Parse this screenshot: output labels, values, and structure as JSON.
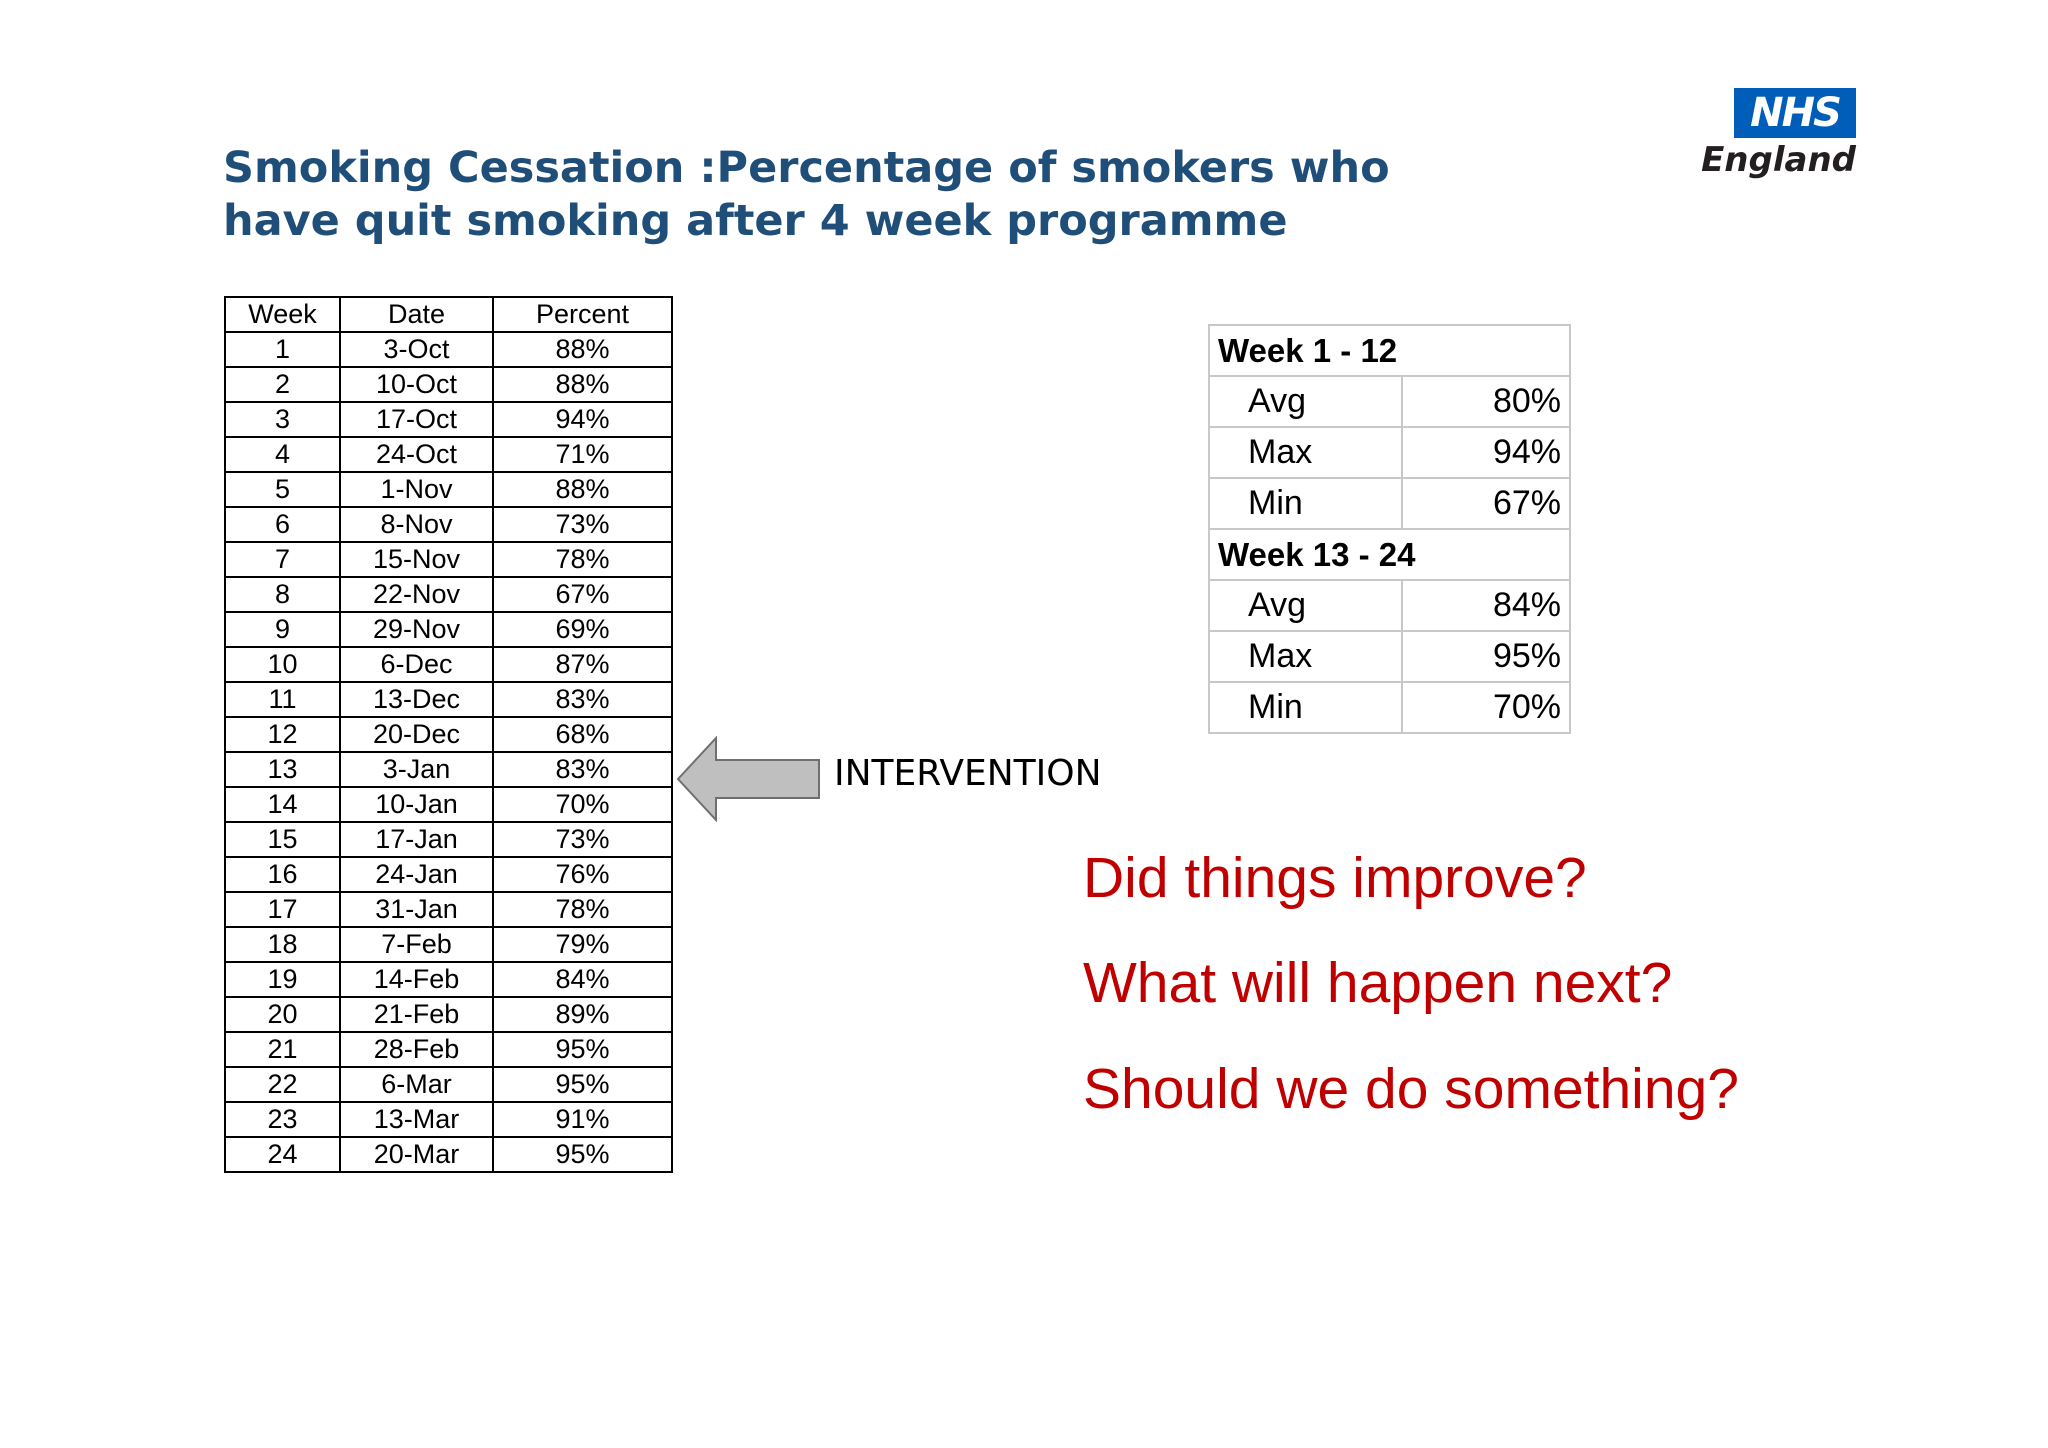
{
  "title": {
    "line1": "Smoking Cessation :Percentage of smokers who",
    "line2": "have quit smoking after 4 week programme"
  },
  "logo": {
    "badge": "NHS",
    "name": "England",
    "badge_color": "#005eb8"
  },
  "table": {
    "headers": [
      "Week",
      "Date",
      "Percent"
    ],
    "rows": [
      [
        "1",
        "3-Oct",
        "88%"
      ],
      [
        "2",
        "10-Oct",
        "88%"
      ],
      [
        "3",
        "17-Oct",
        "94%"
      ],
      [
        "4",
        "24-Oct",
        "71%"
      ],
      [
        "5",
        "1-Nov",
        "88%"
      ],
      [
        "6",
        "8-Nov",
        "73%"
      ],
      [
        "7",
        "15-Nov",
        "78%"
      ],
      [
        "8",
        "22-Nov",
        "67%"
      ],
      [
        "9",
        "29-Nov",
        "69%"
      ],
      [
        "10",
        "6-Dec",
        "87%"
      ],
      [
        "11",
        "13-Dec",
        "83%"
      ],
      [
        "12",
        "20-Dec",
        "68%"
      ],
      [
        "13",
        "3-Jan",
        "83%"
      ],
      [
        "14",
        "10-Jan",
        "70%"
      ],
      [
        "15",
        "17-Jan",
        "73%"
      ],
      [
        "16",
        "24-Jan",
        "76%"
      ],
      [
        "17",
        "31-Jan",
        "78%"
      ],
      [
        "18",
        "7-Feb",
        "79%"
      ],
      [
        "19",
        "14-Feb",
        "84%"
      ],
      [
        "20",
        "21-Feb",
        "89%"
      ],
      [
        "21",
        "28-Feb",
        "95%"
      ],
      [
        "22",
        "6-Mar",
        "95%"
      ],
      [
        "23",
        "13-Mar",
        "91%"
      ],
      [
        "24",
        "20-Mar",
        "95%"
      ]
    ]
  },
  "intervention": {
    "label": "INTERVENTION",
    "arrow_color": "#bfbfbf"
  },
  "stats": [
    {
      "heading": "Week 1 - 12",
      "rows": [
        {
          "label": "Avg",
          "value": "80%"
        },
        {
          "label": "Max",
          "value": "94%"
        },
        {
          "label": "Min",
          "value": "67%"
        }
      ]
    },
    {
      "heading": "Week 13 - 24",
      "rows": [
        {
          "label": "Avg",
          "value": "84%"
        },
        {
          "label": "Max",
          "value": "95%"
        },
        {
          "label": "Min",
          "value": "70%"
        }
      ]
    }
  ],
  "questions": [
    "Did things improve?",
    "What will happen next?",
    "Should we do something?"
  ],
  "colors": {
    "title": "#1f4e79",
    "questions": "#c00000"
  }
}
